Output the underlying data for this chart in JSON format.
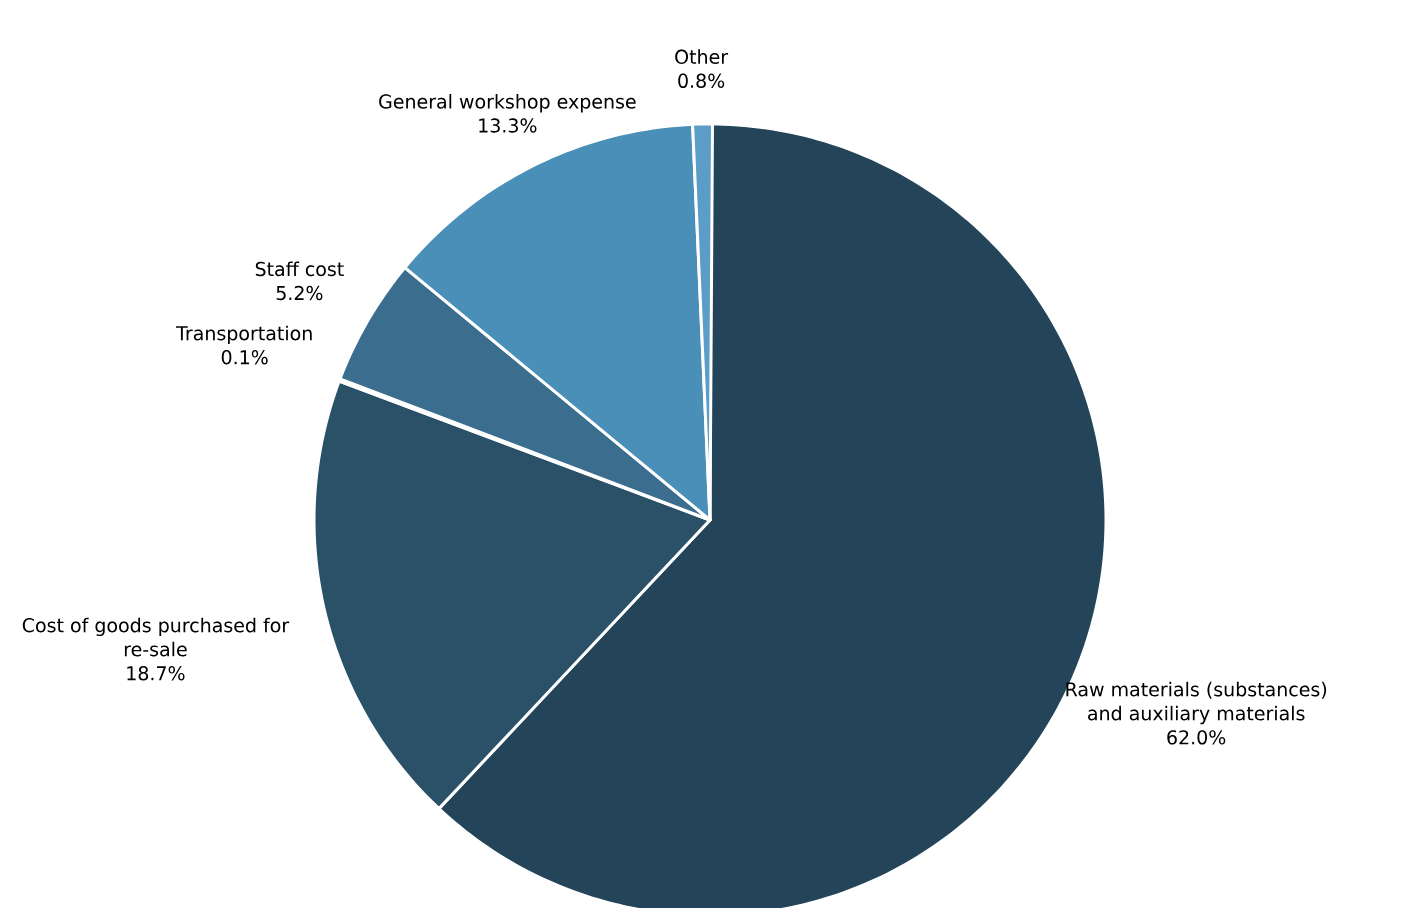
{
  "chart_data": {
    "type": "pie",
    "categories": [
      "Raw materials (substances) and auxiliary materials",
      "Cost of goods purchased for re-sale",
      "Transportation",
      "Staff cost",
      "General workshop expense",
      "Other"
    ],
    "values": [
      62.0,
      18.7,
      0.1,
      5.2,
      13.3,
      0.8
    ],
    "value_labels": [
      "62.0%",
      "18.7%",
      "0.1%",
      "5.2%",
      "13.3%",
      "0.8%"
    ],
    "colors": [
      "#234459",
      "#2b5169",
      "#315a75",
      "#3b6d8f",
      "#4a8fb8",
      "#5b9dc7"
    ]
  }
}
